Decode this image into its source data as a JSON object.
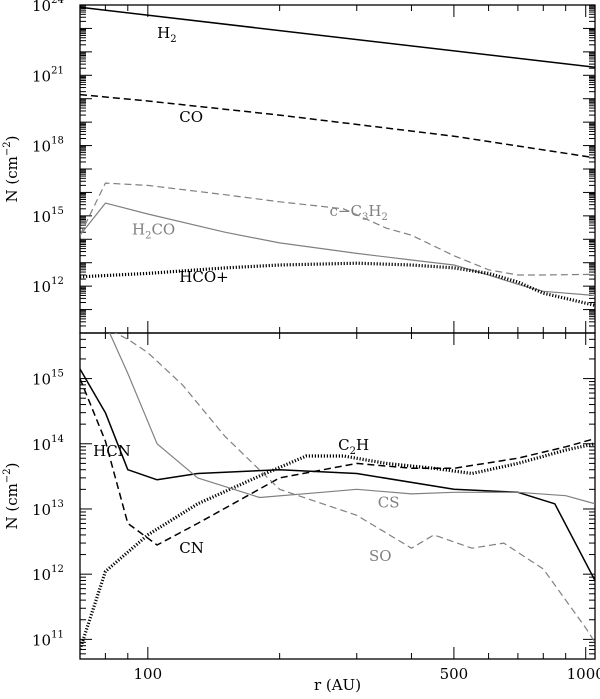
{
  "chart_data": [
    {
      "type": "line",
      "panel": "top",
      "xscale": "log",
      "yscale": "log",
      "xlim": [
        70,
        1050
      ],
      "ylim": [
        10000000000.0,
        1e+24
      ],
      "ylabel": "N (cm",
      "ylabel_sup": "−2",
      "ylabel_close": ")",
      "yticks": [
        {
          "value": 1000000000000.0,
          "base": "10",
          "exp": "12"
        },
        {
          "value": 1000000000000000.0,
          "base": "10",
          "exp": "15"
        },
        {
          "value": 1e+18,
          "base": "10",
          "exp": "18"
        },
        {
          "value": 1e+21,
          "base": "10",
          "exp": "21"
        },
        {
          "value": 1e+24,
          "base": "10",
          "exp": "24"
        }
      ],
      "series": [
        {
          "name": "H",
          "sub": "2",
          "color": "#000000",
          "dash": "solid",
          "width": 1.5,
          "label_at": [
            105,
            4e+22
          ],
          "x": [
            70,
            1050
          ],
          "y": [
            8e+23,
            2.2e+21
          ]
        },
        {
          "name": "CO",
          "sub": "",
          "color": "#000000",
          "dash": "dashed",
          "width": 1.5,
          "label_at": [
            118,
            1e+19
          ],
          "x": [
            70,
            100,
            200,
            500,
            1050
          ],
          "y": [
            1.5e+20,
            8e+19,
            2e+19,
            2.5e+18,
            3e+17
          ]
        },
        {
          "name": "c−C",
          "sub": "3",
          "name2": "H",
          "sub2": "2",
          "color": "#808080",
          "dash": "dashed",
          "width": 1.2,
          "label_at": [
            260,
            1000000000000000.0
          ],
          "x": [
            70,
            80,
            100,
            150,
            200,
            280,
            350,
            400,
            500,
            600,
            700,
            800,
            1050
          ],
          "y": [
            150000000000000.0,
            2.5e+16,
            2e+16,
            8000000000000000.0,
            4000000000000000.0,
            2000000000000000.0,
            300000000000000.0,
            150000000000000.0,
            20000000000000.0,
            5000000000000.0,
            3000000000000.0,
            3000000000000.0,
            3200000000000.0
          ]
        },
        {
          "name": "H",
          "sub": "2",
          "name2": "CO",
          "sub2": "",
          "color": "#808080",
          "dash": "solid",
          "width": 1.2,
          "label_at": [
            92,
            160000000000000.0
          ],
          "x": [
            70,
            80,
            100,
            150,
            200,
            300,
            400,
            500,
            600,
            700,
            800,
            1050
          ],
          "y": [
            150000000000000.0,
            3500000000000000.0,
            1200000000000000.0,
            200000000000000.0,
            70000000000000.0,
            25000000000000.0,
            13000000000000.0,
            8000000000000.0,
            3000000000000.0,
            1200000000000.0,
            600000000000.0,
            400000000000.0
          ]
        },
        {
          "name": "HCO+",
          "sub": "",
          "color": "#000000",
          "dash": "dotted",
          "width": 3.2,
          "label_at": [
            118,
            1500000000000.0
          ],
          "x": [
            70,
            100,
            150,
            200,
            300,
            400,
            500,
            600,
            700,
            800,
            900,
            1050
          ],
          "y": [
            2500000000000.0,
            3500000000000.0,
            6000000000000.0,
            8000000000000.0,
            9500000000000.0,
            8000000000000.0,
            6000000000000.0,
            3500000000000.0,
            1500000000000.0,
            500000000000.0,
            300000000000.0,
            150000000000.0
          ]
        }
      ]
    },
    {
      "type": "line",
      "panel": "bottom",
      "xscale": "log",
      "yscale": "log",
      "xlim": [
        70,
        1050
      ],
      "ylim": [
        50000000000.0,
        5000000000000000.0
      ],
      "xlabel": "r (AU)",
      "ylabel": "N (cm",
      "ylabel_sup": "−2",
      "ylabel_close": ")",
      "xticks": [
        {
          "value": 100,
          "label": "100"
        },
        {
          "value": 500,
          "label": "500"
        },
        {
          "value": 1000,
          "label": "1000"
        }
      ],
      "yticks": [
        {
          "value": 100000000000.0,
          "base": "10",
          "exp": "11"
        },
        {
          "value": 1000000000000.0,
          "base": "10",
          "exp": "12"
        },
        {
          "value": 10000000000000.0,
          "base": "10",
          "exp": "13"
        },
        {
          "value": 100000000000000.0,
          "base": "10",
          "exp": "14"
        },
        {
          "value": 1000000000000000.0,
          "base": "10",
          "exp": "15"
        }
      ],
      "series": [
        {
          "name": "HCN",
          "sub": "",
          "color": "#000000",
          "dash": "solid",
          "width": 1.5,
          "label_at": [
            75,
            65000000000000.0
          ],
          "x": [
            70,
            80,
            90,
            105,
            130,
            200,
            300,
            500,
            700,
            850,
            1050
          ],
          "y": [
            1400000000000000.0,
            300000000000000.0,
            40000000000000.0,
            28000000000000.0,
            35000000000000.0,
            40000000000000.0,
            35000000000000.0,
            20000000000000.0,
            18000000000000.0,
            12000000000000.0,
            800000000000.0
          ]
        },
        {
          "name": "CN",
          "sub": "",
          "color": "#000000",
          "dash": "dashed",
          "width": 1.5,
          "label_at": [
            118,
            2100000000000.0
          ],
          "x": [
            70,
            80,
            90,
            105,
            130,
            200,
            300,
            400,
            500,
            700,
            900,
            1050
          ],
          "y": [
            1000000000000000.0,
            110000000000000.0,
            6000000000000.0,
            2800000000000.0,
            6000000000000.0,
            30000000000000.0,
            50000000000000.0,
            42000000000000.0,
            42000000000000.0,
            60000000000000.0,
            90000000000000.0,
            120000000000000.0
          ]
        },
        {
          "name": "C",
          "sub": "2",
          "name2": "H",
          "sub2": "",
          "color": "#000000",
          "dash": "dotted",
          "width": 3.2,
          "label_at": [
            272,
            80000000000000.0
          ],
          "x": [
            70,
            80,
            100,
            130,
            180,
            230,
            280,
            350,
            450,
            550,
            700,
            900,
            1050
          ],
          "y": [
            70000000000.0,
            1100000000000.0,
            4000000000000.0,
            12000000000000.0,
            32000000000000.0,
            65000000000000.0,
            65000000000000.0,
            50000000000000.0,
            42000000000000.0,
            35000000000000.0,
            50000000000000.0,
            80000000000000.0,
            100000000000000.0
          ]
        },
        {
          "name": "CS",
          "sub": "",
          "color": "#808080",
          "dash": "solid",
          "width": 1.2,
          "label_at": [
            335,
            10500000000000.0
          ],
          "x": [
            70,
            80,
            90,
            105,
            130,
            180,
            250,
            300,
            400,
            500,
            700,
            900,
            1050
          ],
          "y": [
            8000000000000000.0,
            7000000000000000.0,
            1200000000000000.0,
            100000000000000.0,
            30000000000000.0,
            15000000000000.0,
            18000000000000.0,
            20000000000000.0,
            17000000000000.0,
            18000000000000.0,
            18000000000000.0,
            16000000000000.0,
            12000000000000.0
          ]
        },
        {
          "name": "SO",
          "sub": "",
          "color": "#808080",
          "dash": "dashed",
          "width": 1.2,
          "label_at": [
            320,
            1600000000000.0
          ],
          "x": [
            70,
            80,
            90,
            100,
            120,
            150,
            200,
            300,
            400,
            450,
            550,
            650,
            800,
            1000,
            1050
          ],
          "y": [
            8000000000000000.0,
            6000000000000000.0,
            4000000000000000.0,
            2500000000000000.0,
            800000000000000.0,
            130000000000000.0,
            20000000000000.0,
            8000000000000.0,
            2500000000000.0,
            4000000000000.0,
            2500000000000.0,
            3000000000000.0,
            1200000000000.0,
            150000000000.0,
            90000000000.0
          ]
        }
      ]
    }
  ]
}
